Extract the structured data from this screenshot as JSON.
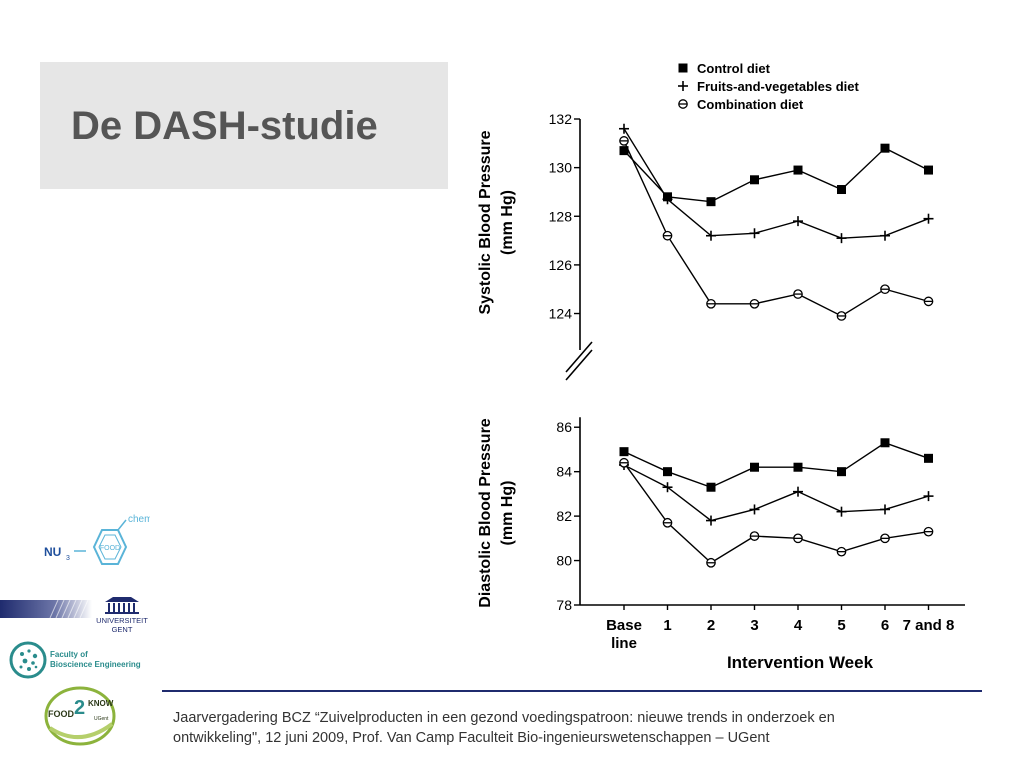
{
  "slide": {
    "title": "De DASH-studie",
    "footer_line1": "Jaarvergadering BCZ “Zuivelproducten in een gezond voedingspatroon: nieuwe trends in onderzoek en",
    "footer_line2": "ontwikkeling\", 12 juni 2009, Prof. Van Camp  Faculteit Bio-ingenieurswetenschappen – UGent"
  },
  "logos": {
    "nu3chem": {
      "nu": "NU",
      "sub": "3",
      "food": "FOOD",
      "chem": "chem"
    },
    "ugent": {
      "line1": "UNIVERSITEIT",
      "line2": "GENT"
    },
    "faculty": {
      "line1": "Faculty of",
      "line2": "Bioscience Engineering"
    },
    "food2know": {
      "left": "FOOD",
      "num": "2",
      "right": "KNOW",
      "sub": "UGent"
    }
  },
  "colors": {
    "footer_rule": "#1f2b6e",
    "title_box": "#e6e6e6",
    "title_text": "#555555",
    "faculty_teal": "#2a8c8c",
    "food2know_green": "#8cb33c"
  },
  "chart_data": {
    "type": "line",
    "xlabel": "Intervention Week",
    "categories": [
      "Base\nline",
      "1",
      "2",
      "3",
      "4",
      "5",
      "6",
      "7 and 8"
    ],
    "legend": {
      "placement": "top",
      "entries": [
        {
          "name": "Control diet",
          "marker": "square"
        },
        {
          "name": "Fruits-and-vegetables diet",
          "marker": "plus"
        },
        {
          "name": "Combination diet",
          "marker": "circle"
        }
      ]
    },
    "panels": [
      {
        "ylabel": "Systolic Blood Pressure\n(mm Hg)",
        "ylim": [
          122.5,
          132
        ],
        "yticks": [
          124,
          126,
          128,
          130,
          132
        ],
        "series": [
          {
            "name": "Control diet",
            "marker": "square",
            "values": [
              130.7,
              128.8,
              128.6,
              129.5,
              129.9,
              129.1,
              130.8,
              129.9
            ]
          },
          {
            "name": "Fruits-and-vegetables diet",
            "marker": "plus",
            "values": [
              131.6,
              128.7,
              127.2,
              127.3,
              127.8,
              127.1,
              127.2,
              127.9
            ]
          },
          {
            "name": "Combination diet",
            "marker": "circle",
            "values": [
              131.1,
              127.2,
              124.4,
              124.4,
              124.8,
              123.9,
              125.0,
              124.5
            ]
          }
        ]
      },
      {
        "ylabel": "Diastolic Blood Pressure\n(mm Hg)",
        "ylim": [
          78,
          87
        ],
        "yticks": [
          78,
          80,
          82,
          84,
          86
        ],
        "series": [
          {
            "name": "Control diet",
            "marker": "square",
            "values": [
              84.9,
              84.0,
              83.3,
              84.2,
              84.2,
              84.0,
              85.3,
              84.6
            ]
          },
          {
            "name": "Fruits-and-vegetables diet",
            "marker": "plus",
            "values": [
              84.3,
              83.3,
              81.8,
              82.3,
              83.1,
              82.2,
              82.3,
              82.9
            ]
          },
          {
            "name": "Combination diet",
            "marker": "circle",
            "values": [
              84.4,
              81.7,
              79.9,
              81.1,
              81.0,
              80.4,
              81.0,
              81.3
            ]
          }
        ]
      }
    ]
  }
}
